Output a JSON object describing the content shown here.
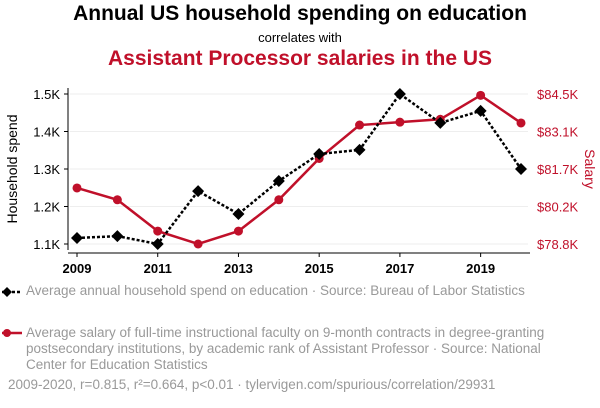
{
  "chart_data": {
    "type": "line",
    "title": "Annual US household spending on education",
    "subtitle": "correlates with",
    "title2": "Assistant Processor salaries in the US",
    "x": [
      2009,
      2010,
      2011,
      2012,
      2013,
      2014,
      2015,
      2016,
      2017,
      2018,
      2019,
      2020
    ],
    "xticks": [
      "2009",
      "2011",
      "2013",
      "2015",
      "2017",
      "2019"
    ],
    "ylabel": "Household spend",
    "y2label": "Salary",
    "yticks": [
      "1.1K",
      "1.2K",
      "1.3K",
      "1.4K",
      "1.5K"
    ],
    "y2ticks": [
      "$78.8K",
      "$80.2K",
      "$81.7K",
      "$83.1K",
      "$84.5K"
    ],
    "ylim": [
      1.1,
      1.5
    ],
    "y2lim": [
      78.8,
      84.5
    ],
    "series": [
      {
        "name": "Average annual household spend on education · Source: Bureau of Labor Statistics",
        "axis": "left",
        "color": "#000000",
        "values": [
          1.116,
          1.121,
          1.1,
          1.241,
          1.18,
          1.268,
          1.34,
          1.351,
          1.5,
          1.423,
          1.455,
          1.3
        ]
      },
      {
        "name": "Average salary of full-time instructional faculty on 9-month contracts in degree-granting postsecondary institutions, by academic rank of Assistant Professor · Source: National Center for Education Statistics",
        "axis": "right",
        "color": "#c0102a",
        "values": [
          80.93,
          80.48,
          79.29,
          78.8,
          79.29,
          80.48,
          82.05,
          83.32,
          83.43,
          83.54,
          84.45,
          83.4
        ]
      }
    ],
    "footer": "2009-2020, r=0.815, r²=0.664, p<0.01 · tylervigen.com/spurious/correlation/29931"
  }
}
